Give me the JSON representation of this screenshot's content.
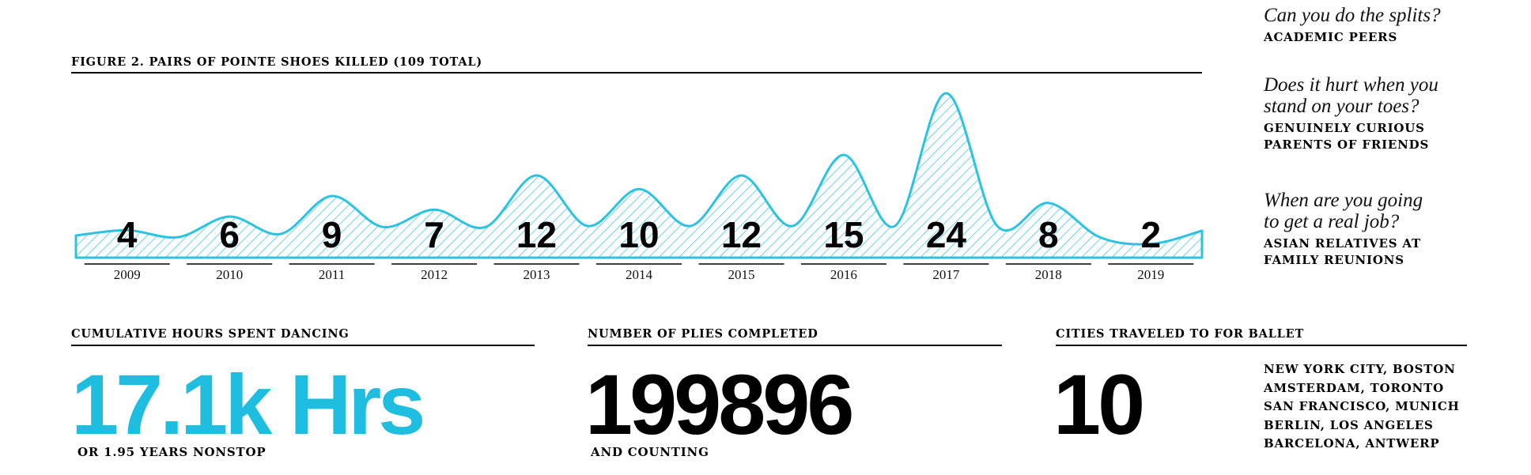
{
  "chart_data": {
    "type": "area",
    "title": "FIGURE 2. PAIRS OF POINTE SHOES KILLED (109 TOTAL)",
    "categories": [
      "2009",
      "2010",
      "2011",
      "2012",
      "2013",
      "2014",
      "2015",
      "2016",
      "2017",
      "2018",
      "2019"
    ],
    "values": [
      4,
      6,
      9,
      7,
      12,
      10,
      12,
      15,
      24,
      8,
      2
    ],
    "total": 109,
    "color": "#2bc3e1",
    "fill_pattern": "diagonal-hatch",
    "grid": false
  },
  "stats": {
    "hours": {
      "title": "CUMULATIVE HOURS SPENT DANCING",
      "value": "17.1k Hrs",
      "caption": "OR 1.95 YEARS NONSTOP",
      "color": "#1fbde0"
    },
    "plies": {
      "title": "NUMBER OF PLIES COMPLETED",
      "value": "199896",
      "caption": "AND COUNTING"
    },
    "cities": {
      "title": "CITIES TRAVELED TO FOR BALLET",
      "value": "10",
      "list": [
        "NEW YORK CITY, BOSTON",
        "AMSTERDAM, TORONTO",
        "SAN FRANCISCO, MUNICH",
        "BERLIN, LOS ANGELES",
        "BARCELONA, ANTWERP"
      ]
    }
  },
  "questions": [
    {
      "question": [
        "Can you do the splits?"
      ],
      "source": [
        "ACADEMIC PEERS"
      ]
    },
    {
      "question": [
        "Does it hurt when you",
        "stand on your toes?"
      ],
      "source": [
        "GENUINELY CURIOUS",
        "PARENTS OF FRIENDS"
      ]
    },
    {
      "question": [
        "When are you going",
        "to get a real job?"
      ],
      "source": [
        "ASIAN RELATIVES AT",
        "FAMILY REUNIONS"
      ]
    }
  ]
}
